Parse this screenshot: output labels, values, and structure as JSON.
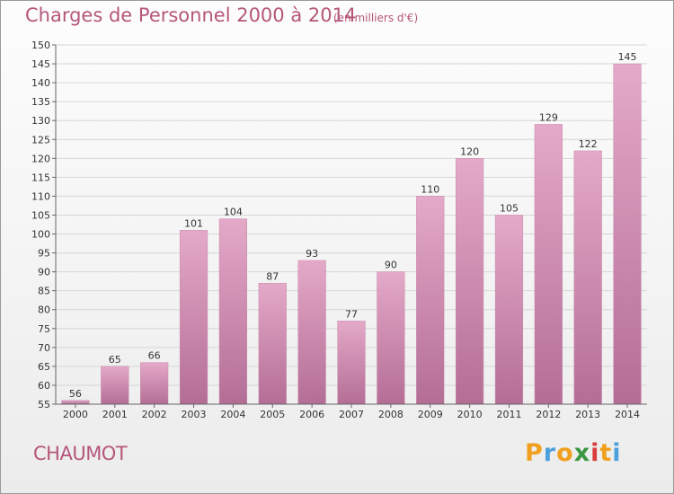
{
  "chart_data": {
    "type": "bar",
    "title": "Charges de Personnel 2000 à 2014",
    "subtitle": "(en milliers d'€)",
    "categories": [
      "2000",
      "2001",
      "2002",
      "2003",
      "2004",
      "2005",
      "2006",
      "2007",
      "2008",
      "2009",
      "2010",
      "2011",
      "2012",
      "2013",
      "2014"
    ],
    "values": [
      56,
      65,
      66,
      101,
      104,
      87,
      93,
      77,
      90,
      110,
      120,
      105,
      129,
      122,
      145
    ],
    "ylim": [
      55,
      150
    ],
    "yticks": [
      55,
      60,
      65,
      70,
      75,
      80,
      85,
      90,
      95,
      100,
      105,
      110,
      115,
      120,
      125,
      130,
      135,
      140,
      145,
      150
    ],
    "grid": true,
    "bar_color_top": "#e4a9c8",
    "bar_color_bottom": "#b46e96"
  },
  "footer": {
    "commune": "CHAUMOT",
    "logo": {
      "letters": [
        "P",
        "r",
        "o",
        "x",
        "i",
        "t",
        "i"
      ],
      "colors": [
        "#f0a01e",
        "#4ca0dc",
        "#f0a01e",
        "#3c9640",
        "#d93c3c",
        "#f0a01e",
        "#4ca0dc"
      ]
    }
  }
}
